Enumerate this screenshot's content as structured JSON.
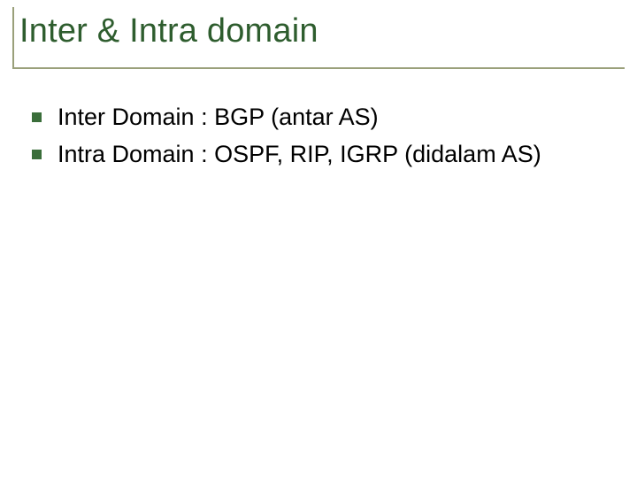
{
  "slide": {
    "title": "Inter & Intra domain",
    "title_color": "#2e5d2e",
    "title_fontsize": 38,
    "rule_color": "#9aa07a",
    "bullets": [
      {
        "text": "Inter Domain : BGP (antar AS)"
      },
      {
        "text": "Intra Domain : OSPF, RIP, IGRP (didalam AS)"
      }
    ],
    "bullet_marker_color": "#3a6e3a",
    "body_text_color": "#000000",
    "body_fontsize": 27,
    "background_color": "#ffffff"
  }
}
